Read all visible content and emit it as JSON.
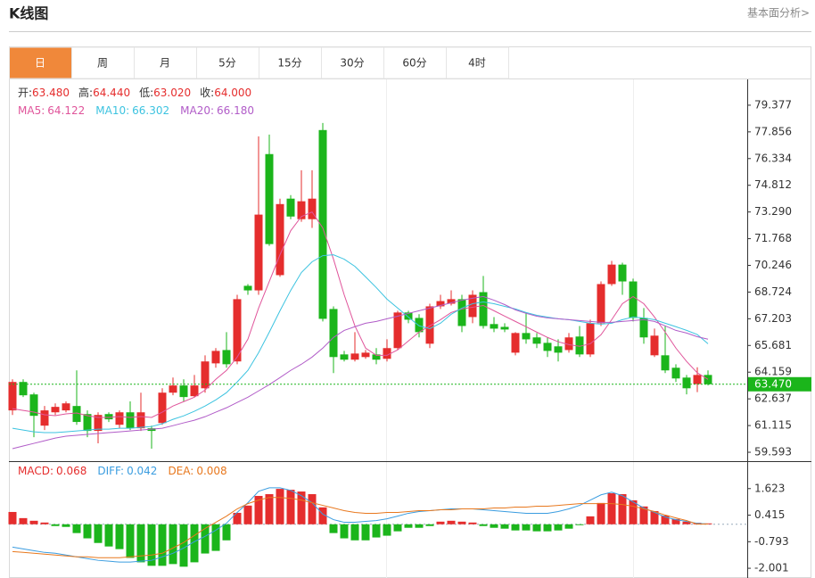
{
  "ui": {
    "title": "K线图",
    "link": "基本面分析>",
    "tabs": [
      "日",
      "周",
      "月",
      "5分",
      "15分",
      "30分",
      "60分",
      "4时"
    ],
    "active_tab": 0,
    "active_color": "#f0883a",
    "readout": [
      {
        "label": "开:",
        "value": "63.480"
      },
      {
        "label": "高:",
        "value": "64.440"
      },
      {
        "label": "低:",
        "value": "63.020"
      },
      {
        "label": "收:",
        "value": "64.000"
      }
    ],
    "readout_value_color": "#e52d2d"
  },
  "chart_data": [
    {
      "type": "candlestick",
      "up_color": "#e52d2d",
      "down_color": "#1bb51b",
      "open": [
        61.98,
        63.6,
        62.89,
        61.11,
        61.87,
        61.98,
        62.23,
        61.77,
        60.81,
        61.77,
        61.16,
        61.87,
        60.96,
        60.96,
        61.26,
        62.99,
        63.4,
        62.79,
        63.24,
        64.66,
        65.42,
        64.77,
        69.08,
        68.82,
        76.59,
        69.69,
        74.05,
        72.88,
        72.88,
        77.96,
        67.76,
        65.17,
        64.87,
        65.02,
        65.17,
        64.92,
        65.53,
        67.56,
        67.25,
        65.78,
        67.91,
        68.06,
        68.32,
        67.3,
        68.72,
        66.9,
        66.74,
        65.27,
        66.39,
        66.14,
        65.83,
        65.63,
        65.42,
        66.19,
        65.17,
        66.95,
        69.18,
        70.29,
        69.33,
        67.25,
        65.12,
        65.12,
        64.41,
        63.85,
        63.48,
        64.0
      ],
      "high": [
        63.75,
        63.75,
        62.99,
        62.23,
        62.38,
        62.49,
        64.26,
        61.98,
        61.87,
        61.87,
        61.98,
        62.49,
        62.99,
        61.11,
        63.24,
        63.85,
        63.75,
        64.0,
        65.12,
        65.53,
        66.44,
        68.57,
        69.18,
        77.6,
        77.7,
        74.05,
        74.25,
        75.67,
        75.67,
        78.36,
        67.91,
        65.37,
        66.44,
        65.42,
        65.53,
        66.03,
        67.66,
        67.66,
        67.46,
        68.06,
        68.57,
        68.82,
        68.57,
        68.82,
        69.64,
        67.3,
        66.95,
        66.44,
        67.56,
        66.39,
        66.14,
        66.03,
        66.39,
        66.79,
        67.15,
        69.33,
        70.5,
        70.4,
        69.49,
        67.81,
        66.64,
        66.79,
        64.61,
        64.0,
        64.44,
        64.26
      ],
      "low": [
        61.72,
        62.74,
        60.45,
        60.86,
        61.72,
        61.87,
        61.16,
        60.45,
        60.1,
        61.32,
        60.96,
        60.86,
        60.81,
        59.8,
        61.16,
        62.84,
        62.49,
        62.74,
        62.99,
        64.41,
        64.41,
        64.61,
        68.57,
        68.57,
        71.36,
        69.59,
        72.88,
        72.73,
        72.38,
        67.05,
        64.11,
        64.77,
        64.77,
        64.92,
        64.61,
        64.77,
        65.42,
        66.95,
        66.14,
        65.53,
        67.76,
        67.96,
        66.44,
        66.95,
        66.64,
        66.44,
        66.44,
        65.12,
        65.78,
        65.53,
        65.02,
        64.77,
        65.27,
        65.02,
        65.02,
        66.79,
        69.08,
        68.57,
        67.05,
        65.78,
        65.02,
        64.11,
        63.6,
        62.89,
        63.02,
        63.4
      ],
      "close": [
        63.6,
        62.84,
        61.67,
        61.98,
        62.18,
        62.38,
        61.32,
        60.81,
        61.72,
        61.47,
        61.87,
        60.96,
        61.87,
        60.81,
        62.99,
        63.4,
        62.74,
        63.4,
        64.77,
        65.37,
        64.61,
        68.32,
        68.82,
        73.14,
        71.46,
        73.74,
        73.03,
        73.9,
        74.05,
        67.2,
        65.02,
        64.87,
        65.22,
        65.27,
        64.87,
        65.53,
        67.56,
        67.15,
        66.44,
        67.91,
        68.21,
        68.32,
        66.79,
        68.57,
        66.79,
        66.64,
        66.59,
        66.39,
        66.03,
        65.78,
        65.37,
        65.27,
        66.14,
        65.17,
        66.95,
        69.18,
        70.29,
        69.33,
        67.25,
        66.14,
        66.24,
        64.26,
        63.8,
        63.24,
        64.0,
        63.47
      ],
      "lines": [
        {
          "name": "MA5:",
          "readout": "64.122",
          "color": "#e0559b",
          "values": [
            62.08,
            61.98,
            61.88,
            61.73,
            61.68,
            61.78,
            61.83,
            61.68,
            61.58,
            61.58,
            61.63,
            61.58,
            61.63,
            61.58,
            61.88,
            62.23,
            62.48,
            62.73,
            63.14,
            63.75,
            64.26,
            65.02,
            66.04,
            67.81,
            69.33,
            70.85,
            72.22,
            73.03,
            73.29,
            72.38,
            70.6,
            68.57,
            66.8,
            65.53,
            65.12,
            65.12,
            65.43,
            65.94,
            66.44,
            66.8,
            67.15,
            67.56,
            67.76,
            67.86,
            67.96,
            67.66,
            67.35,
            67.05,
            66.75,
            66.44,
            66.14,
            65.89,
            65.73,
            65.63,
            65.78,
            66.29,
            67.15,
            68.06,
            68.47,
            68.06,
            67.3,
            66.44,
            65.53,
            64.77,
            64.122,
            63.75
          ]
        },
        {
          "name": "MA10:",
          "readout": "66.302",
          "color": "#3cc3e0",
          "values": [
            60.96,
            60.86,
            60.76,
            60.71,
            60.71,
            60.76,
            60.81,
            60.86,
            60.91,
            60.91,
            60.96,
            60.96,
            61.01,
            61.06,
            61.22,
            61.47,
            61.67,
            61.93,
            62.23,
            62.58,
            62.99,
            63.6,
            64.26,
            65.27,
            66.44,
            67.66,
            68.82,
            69.84,
            70.45,
            70.8,
            70.85,
            70.6,
            70.19,
            69.59,
            68.98,
            68.32,
            67.81,
            67.3,
            66.8,
            66.64,
            66.95,
            67.46,
            67.81,
            68.06,
            68.16,
            68.06,
            67.91,
            67.76,
            67.56,
            67.4,
            67.3,
            67.2,
            67.15,
            67.05,
            66.95,
            66.9,
            66.95,
            67.15,
            67.3,
            67.25,
            67.15,
            66.95,
            66.75,
            66.54,
            66.302,
            65.78
          ]
        },
        {
          "name": "MA20:",
          "readout": "66.180",
          "color": "#b15cc8",
          "values": [
            59.8,
            59.95,
            60.1,
            60.25,
            60.4,
            60.51,
            60.56,
            60.61,
            60.66,
            60.71,
            60.76,
            60.81,
            60.86,
            60.91,
            60.96,
            61.11,
            61.27,
            61.42,
            61.62,
            61.88,
            62.13,
            62.43,
            62.73,
            63.09,
            63.45,
            63.85,
            64.26,
            64.61,
            65.02,
            65.53,
            66.14,
            66.54,
            66.75,
            66.95,
            67.05,
            67.2,
            67.35,
            67.51,
            67.66,
            67.81,
            67.96,
            68.11,
            68.26,
            68.37,
            68.47,
            68.26,
            68.01,
            67.71,
            67.51,
            67.35,
            67.25,
            67.2,
            67.15,
            67.1,
            67.05,
            67.0,
            67.0,
            67.05,
            67.1,
            67.15,
            67.05,
            66.8,
            66.54,
            66.39,
            66.18,
            66.04
          ]
        }
      ],
      "ylim": [
        59.086,
        80.848
      ],
      "yticks": [
        79.377,
        77.856,
        76.334,
        74.812,
        {
          "value": 73.29,
          "label": "73.290"
        },
        71.768,
        70.246,
        68.724,
        67.203,
        65.681,
        64.159,
        62.637,
        61.115,
        59.593
      ],
      "last_price": {
        "value": 63.47,
        "label": "63.470",
        "color": "#1bb51b"
      }
    },
    {
      "type": "macd",
      "up_color": "#e52d2d",
      "down_color": "#1bb51b",
      "histogram": {
        "name": "MACD:",
        "readout": "0.068",
        "color": "#e52d2d",
        "values": [
          0.56,
          0.28,
          0.16,
          0.08,
          -0.08,
          -0.12,
          -0.4,
          -0.64,
          -0.85,
          -1.01,
          -1.13,
          -1.53,
          -1.73,
          -1.89,
          -1.89,
          -1.81,
          -1.93,
          -1.73,
          -1.33,
          -1.21,
          -0.73,
          0.52,
          0.85,
          1.29,
          1.37,
          1.61,
          1.57,
          1.49,
          1.37,
          0.77,
          -0.4,
          -0.64,
          -0.73,
          -0.73,
          -0.6,
          -0.52,
          -0.32,
          -0.16,
          -0.16,
          -0.08,
          0.12,
          0.16,
          0.12,
          0.08,
          -0.08,
          -0.16,
          -0.2,
          -0.28,
          -0.28,
          -0.32,
          -0.32,
          -0.28,
          -0.2,
          -0.04,
          0.36,
          0.97,
          1.41,
          1.37,
          1.09,
          0.81,
          0.6,
          0.4,
          0.24,
          0.12,
          0.068,
          0.04
        ]
      },
      "lines": [
        {
          "name": "DIFF:",
          "readout": "0.042",
          "color": "#3b9de0",
          "values": [
            -1.04,
            -1.12,
            -1.2,
            -1.28,
            -1.32,
            -1.4,
            -1.48,
            -1.56,
            -1.64,
            -1.68,
            -1.72,
            -1.72,
            -1.68,
            -1.64,
            -1.48,
            -1.32,
            -1.08,
            -0.79,
            -0.55,
            -0.27,
            0.05,
            0.54,
            0.98,
            1.5,
            1.66,
            1.66,
            1.54,
            1.3,
            0.98,
            0.46,
            0.21,
            0.09,
            0.09,
            0.13,
            0.17,
            0.25,
            0.37,
            0.5,
            0.58,
            0.62,
            0.66,
            0.7,
            0.7,
            0.7,
            0.66,
            0.62,
            0.58,
            0.54,
            0.5,
            0.5,
            0.5,
            0.58,
            0.7,
            0.86,
            1.1,
            1.34,
            1.46,
            1.3,
            1.02,
            0.74,
            0.54,
            0.33,
            0.21,
            0.13,
            0.042,
            0.01
          ]
        },
        {
          "name": "DEA:",
          "readout": "0.008",
          "color": "#e8781e",
          "values": [
            -1.24,
            -1.28,
            -1.32,
            -1.36,
            -1.4,
            -1.44,
            -1.48,
            -1.48,
            -1.52,
            -1.52,
            -1.52,
            -1.48,
            -1.44,
            -1.4,
            -1.32,
            -1.08,
            -0.83,
            -0.51,
            -0.19,
            0.09,
            0.37,
            0.7,
            0.94,
            1.1,
            1.22,
            1.22,
            1.18,
            1.1,
            0.98,
            0.86,
            0.74,
            0.62,
            0.54,
            0.5,
            0.5,
            0.54,
            0.54,
            0.58,
            0.62,
            0.62,
            0.66,
            0.66,
            0.7,
            0.7,
            0.7,
            0.74,
            0.74,
            0.78,
            0.78,
            0.82,
            0.82,
            0.86,
            0.9,
            0.94,
            0.94,
            0.94,
            0.94,
            0.9,
            0.82,
            0.7,
            0.58,
            0.42,
            0.29,
            0.17,
            0.008,
            0.01
          ]
        }
      ],
      "ylim": [
        -2.444,
        2.831
      ],
      "yticks": [
        1.623,
        0.415,
        -0.793,
        -2.001
      ],
      "zero_line": true
    }
  ]
}
